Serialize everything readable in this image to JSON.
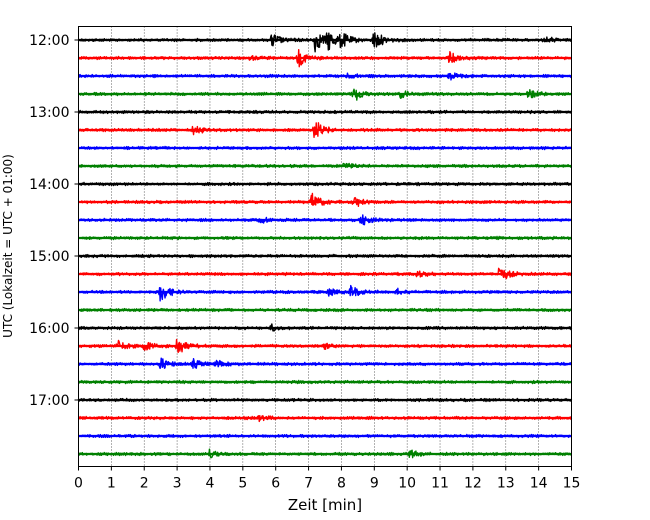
{
  "chart_data": {
    "type": "line",
    "subtype": "helicorder",
    "xlabel": "Zeit  [min]",
    "ylabel": "UTC (Lokalzeit = UTC + 01:00)",
    "xlim": [
      0,
      15
    ],
    "x_ticks": [
      "0",
      "1",
      "2",
      "3",
      "4",
      "5",
      "6",
      "7",
      "8",
      "9",
      "10",
      "11",
      "12",
      "13",
      "14",
      "15"
    ],
    "y_tick_labels": [
      "12:00",
      "13:00",
      "14:00",
      "15:00",
      "16:00",
      "17:00"
    ],
    "trace_minutes": 15,
    "traces_per_tick": 4,
    "grid": "vertical dotted at each minute",
    "colors": [
      "#000000",
      "#ff0000",
      "#0000ff",
      "#008000"
    ],
    "series": [
      {
        "start": "12:00",
        "events": [
          [
            5.9,
            0.6
          ],
          [
            7.2,
            1.0
          ],
          [
            7.6,
            0.75
          ],
          [
            8.0,
            0.6
          ],
          [
            9.0,
            0.8
          ],
          [
            14.2,
            0.25
          ]
        ]
      },
      {
        "start": "12:15",
        "events": [
          [
            6.7,
            0.7
          ],
          [
            11.3,
            0.5
          ],
          [
            5.2,
            0.2
          ]
        ]
      },
      {
        "start": "12:30",
        "events": [
          [
            11.3,
            0.3
          ],
          [
            8.2,
            0.2
          ]
        ]
      },
      {
        "start": "12:45",
        "events": [
          [
            8.4,
            0.6
          ],
          [
            9.8,
            0.3
          ],
          [
            13.7,
            0.4
          ]
        ]
      },
      {
        "start": "13:00",
        "events": []
      },
      {
        "start": "13:15",
        "events": [
          [
            3.5,
            0.4
          ],
          [
            7.2,
            0.85
          ]
        ]
      },
      {
        "start": "13:30",
        "events": []
      },
      {
        "start": "13:45",
        "events": [
          [
            8.1,
            0.3
          ]
        ]
      },
      {
        "start": "14:00",
        "events": []
      },
      {
        "start": "14:15",
        "events": [
          [
            7.1,
            0.7
          ],
          [
            8.4,
            0.4
          ]
        ]
      },
      {
        "start": "14:30",
        "events": [
          [
            5.5,
            0.3
          ],
          [
            8.6,
            0.5
          ]
        ]
      },
      {
        "start": "14:45",
        "events": []
      },
      {
        "start": "15:00",
        "events": []
      },
      {
        "start": "15:15",
        "events": [
          [
            10.3,
            0.3
          ],
          [
            12.8,
            0.7
          ]
        ]
      },
      {
        "start": "15:30",
        "events": [
          [
            2.5,
            0.85
          ],
          [
            7.6,
            0.3
          ],
          [
            8.3,
            0.5
          ],
          [
            9.7,
            0.2
          ]
        ]
      },
      {
        "start": "15:45",
        "events": []
      },
      {
        "start": "16:00",
        "events": [
          [
            5.9,
            0.3
          ]
        ]
      },
      {
        "start": "16:15",
        "events": [
          [
            1.2,
            0.4
          ],
          [
            2.0,
            0.45
          ],
          [
            3.0,
            0.8
          ],
          [
            7.5,
            0.2
          ]
        ]
      },
      {
        "start": "16:30",
        "events": [
          [
            2.5,
            0.5
          ],
          [
            3.5,
            0.35
          ],
          [
            4.2,
            0.25
          ]
        ]
      },
      {
        "start": "16:45",
        "events": []
      },
      {
        "start": "17:00",
        "events": []
      },
      {
        "start": "17:15",
        "events": [
          [
            5.5,
            0.2
          ]
        ]
      },
      {
        "start": "17:30",
        "events": []
      },
      {
        "start": "17:45",
        "events": [
          [
            4.0,
            0.35
          ],
          [
            10.1,
            0.3
          ]
        ]
      }
    ]
  }
}
